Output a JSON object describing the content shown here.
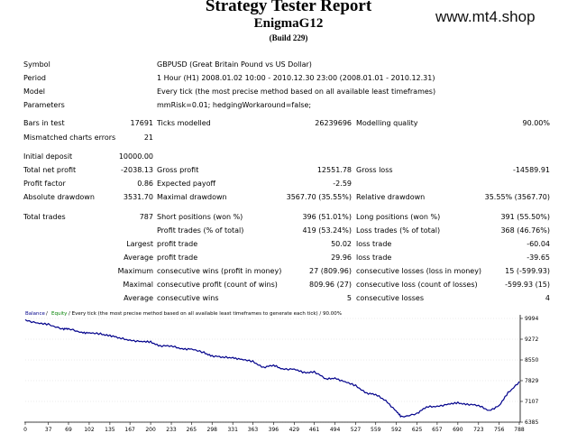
{
  "header": {
    "title": "Strategy Tester Report",
    "expert": "EnigmaG12",
    "build": "(Build 229)",
    "watermark": "www.mt4.shop"
  },
  "info": [
    {
      "label": "Symbol",
      "value": "GBPUSD (Great Britain Pound vs US Dollar)"
    },
    {
      "label": "Period",
      "value": "1 Hour (H1) 2008.01.02 10:00 - 2010.12.30 23:00 (2008.01.01 - 2010.12.31)"
    },
    {
      "label": "Model",
      "value": "Every tick (the most precise method based on all available least timeframes)"
    },
    {
      "label": "Parameters",
      "value": "mmRisk=0.01; hedgingWorkaround=false;"
    }
  ],
  "stats": {
    "bars_label": "Bars in test",
    "bars": "17691",
    "ticks_label": "Ticks modelled",
    "ticks": "26239696",
    "quality_label": "Modelling quality",
    "quality": "90.00%",
    "mismatched_label": "Mismatched charts errors",
    "mismatched": "21",
    "deposit_label": "Initial deposit",
    "deposit": "10000.00",
    "net_profit_label": "Total net profit",
    "net_profit": "-2038.13",
    "gross_profit_label": "Gross profit",
    "gross_profit": "12551.78",
    "gross_loss_label": "Gross loss",
    "gross_loss": "-14589.91",
    "pf_label": "Profit factor",
    "pf": "0.86",
    "payoff_label": "Expected payoff",
    "payoff": "-2.59",
    "abs_dd_label": "Absolute drawdown",
    "abs_dd": "3531.70",
    "max_dd_label": "Maximal drawdown",
    "max_dd": "3567.70 (35.55%)",
    "rel_dd_label": "Relative drawdown",
    "rel_dd": "35.55% (3567.70)",
    "trades_label": "Total trades",
    "trades": "787",
    "short_label": "Short positions (won %)",
    "short": "396 (51.01%)",
    "long_label": "Long positions (won %)",
    "long": "391 (55.50%)",
    "profit_trades_label": "Profit trades (% of total)",
    "profit_trades": "419 (53.24%)",
    "loss_trades_label": "Loss trades (% of total)",
    "loss_trades": "368 (46.76%)",
    "largest_label": "Largest",
    "largest_profit_label": "profit trade",
    "largest_profit": "50.02",
    "largest_loss_label": "loss trade",
    "largest_loss": "-60.04",
    "average_label": "Average",
    "avg_profit_label": "profit trade",
    "avg_profit": "29.96",
    "avg_loss_label": "loss trade",
    "avg_loss": "-39.65",
    "maximum_label": "Maximum",
    "max_wins_label": "consecutive wins (profit in money)",
    "max_wins": "27 (809.96)",
    "max_losses_label": "consecutive losses (loss in money)",
    "max_losses": "15 (-599.93)",
    "maximal_label": "Maximal",
    "maximal_profit_label": "consecutive profit (count of wins)",
    "maximal_profit": "809.96 (27)",
    "maximal_loss_label": "consecutive loss (count of losses)",
    "maximal_loss": "-599.93 (15)",
    "average2_label": "Average",
    "avg_wins_label": "consecutive wins",
    "avg_wins": "5",
    "avg_losses_label": "consecutive losses",
    "avg_losses": "4"
  },
  "chart_legend": {
    "balance": "Balance",
    "sep": " / ",
    "equity": "Equity",
    "rest": " / Every tick (the most precise method based on all available least timeframes to generate each tick) / 90.00%"
  },
  "chart_data": {
    "type": "line",
    "x_ticks": [
      "0",
      "37",
      "69",
      "102",
      "135",
      "167",
      "200",
      "233",
      "265",
      "298",
      "331",
      "363",
      "396",
      "429",
      "461",
      "494",
      "527",
      "559",
      "592",
      "625",
      "657",
      "690",
      "723",
      "756",
      "788"
    ],
    "y_ticks": [
      "9994",
      "9272",
      "8550",
      "7829",
      "7107",
      "6385"
    ],
    "ylim": [
      6385,
      9994
    ],
    "xlim": [
      0,
      788
    ],
    "series": [
      {
        "name": "Balance",
        "color": "#00008b",
        "x": [
          0,
          20,
          37,
          60,
          69,
          90,
          102,
          120,
          135,
          150,
          167,
          185,
          200,
          215,
          233,
          250,
          265,
          285,
          298,
          315,
          331,
          345,
          363,
          380,
          396,
          410,
          429,
          445,
          461,
          480,
          494,
          510,
          527,
          545,
          559,
          575,
          592,
          600,
          625,
          640,
          657,
          675,
          690,
          705,
          723,
          740,
          756,
          770,
          788
        ],
        "y": [
          9950,
          9820,
          9780,
          9640,
          9620,
          9520,
          9480,
          9450,
          9410,
          9300,
          9250,
          9180,
          9170,
          9050,
          9020,
          8950,
          8920,
          8800,
          8700,
          8630,
          8640,
          8560,
          8490,
          8300,
          8350,
          8250,
          8220,
          8100,
          8150,
          7870,
          7930,
          7780,
          7650,
          7400,
          7330,
          7150,
          6750,
          6560,
          6700,
          6900,
          6950,
          7000,
          7050,
          7020,
          6950,
          6800,
          6950,
          7400,
          7800
        ]
      }
    ]
  },
  "colors": {
    "balance": "#00008b",
    "equity": "#008000",
    "axis": "#000000"
  }
}
